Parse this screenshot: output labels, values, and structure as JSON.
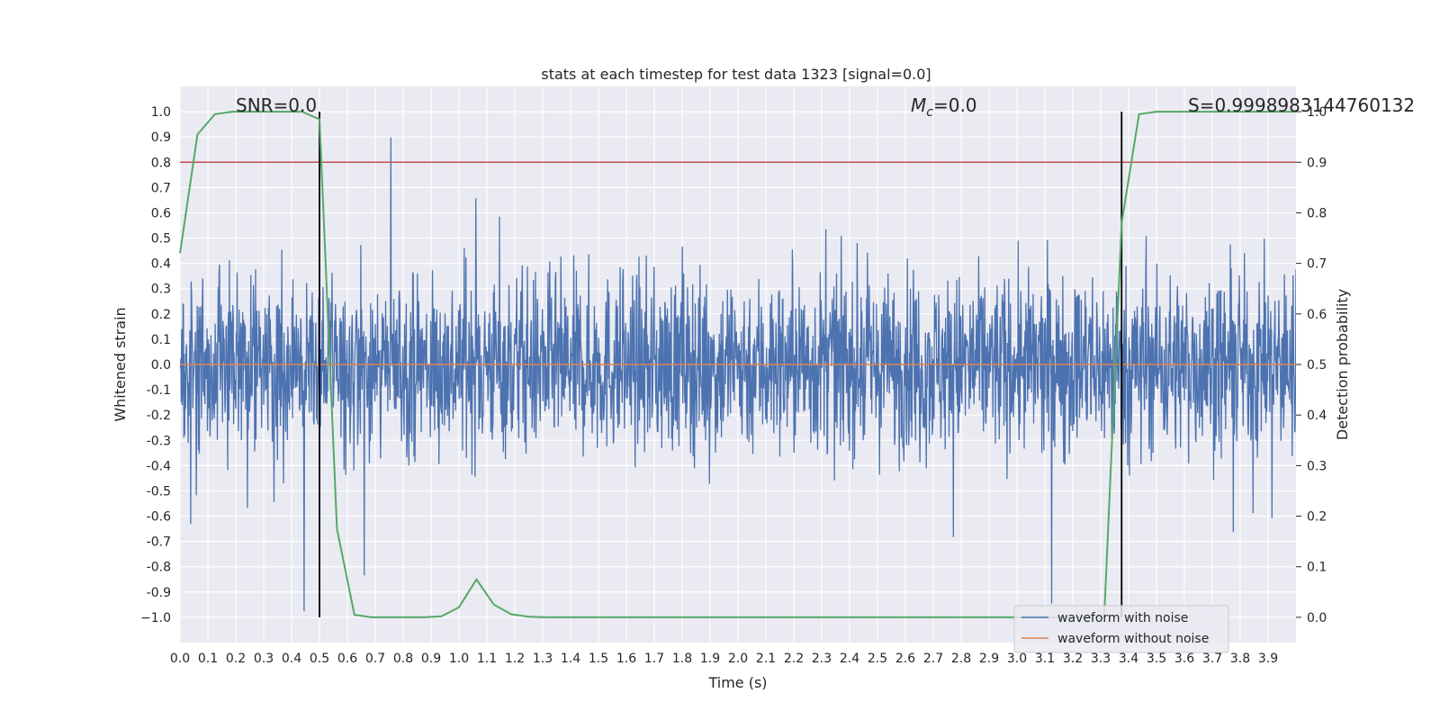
{
  "chart_data": {
    "type": "line",
    "title": "stats at each timestep for test data 1323 [signal=0.0]",
    "xlabel": "Time (s)",
    "ylabel_left": "Whitened strain",
    "ylabel_right": "Detection probability",
    "xlim": [
      0.0,
      4.0
    ],
    "ylim_left": [
      -1.1,
      1.1
    ],
    "ylim_right": [
      -0.05,
      1.05
    ],
    "x_ticks": [
      "0.0",
      "0.1",
      "0.2",
      "0.3",
      "0.4",
      "0.5",
      "0.6",
      "0.7",
      "0.8",
      "0.9",
      "1.0",
      "1.1",
      "1.2",
      "1.3",
      "1.4",
      "1.5",
      "1.6",
      "1.7",
      "1.8",
      "1.9",
      "2.0",
      "2.1",
      "2.2",
      "2.3",
      "2.4",
      "2.5",
      "2.6",
      "2.7",
      "2.8",
      "2.9",
      "3.0",
      "3.1",
      "3.2",
      "3.3",
      "3.4",
      "3.5",
      "3.6",
      "3.7",
      "3.8",
      "3.9"
    ],
    "y_ticks_left": [
      "1.0",
      "0.9",
      "0.8",
      "0.7",
      "0.6",
      "0.5",
      "0.4",
      "0.3",
      "0.2",
      "0.1",
      "0.0",
      "-0.1",
      "-0.2",
      "-0.3",
      "-0.4",
      "-0.5",
      "-0.6",
      "-0.7",
      "-0.8",
      "-0.9",
      "−1.0"
    ],
    "y_ticks_right": [
      "1.0",
      "0.9",
      "0.8",
      "0.7",
      "0.6",
      "0.5",
      "0.4",
      "0.3",
      "0.2",
      "0.1",
      "0.0"
    ],
    "annotations": {
      "snr": "SNR=0.0",
      "mc": "M_c=0.0",
      "mc_base": "M",
      "mc_sub": "c",
      "mc_value": "=0.0",
      "s": "S=0.9998983144760132"
    },
    "threshold_probability": 0.9,
    "vertical_lines_x": [
      0.5,
      3.375
    ],
    "series": [
      {
        "name": "waveform with noise",
        "color": "#4c72b0",
        "note": "dense noisy strain, roughly within ±0.5 with spikes near ±1.0"
      },
      {
        "name": "waveform without noise",
        "color": "#dd8452",
        "values_constant": 0.0
      },
      {
        "name": "detection probability",
        "color": "#55a868",
        "axis": "right",
        "x": [
          0.0,
          0.0625,
          0.125,
          0.1875,
          0.25,
          0.3125,
          0.375,
          0.4375,
          0.5,
          0.5625,
          0.625,
          0.6875,
          0.75,
          0.8125,
          0.875,
          0.9375,
          1.0,
          1.0625,
          1.125,
          1.1875,
          1.25,
          1.3125,
          1.375,
          2.0,
          2.5,
          3.0,
          3.25,
          3.3125,
          3.375,
          3.4375,
          3.5,
          3.5625,
          3.625,
          3.75,
          3.875,
          4.0
        ],
        "y": [
          0.72,
          0.955,
          0.995,
          1.0,
          1.0,
          1.0,
          1.0,
          1.0,
          0.985,
          0.175,
          0.005,
          0.0,
          0.0,
          0.0,
          0.0,
          0.002,
          0.02,
          0.075,
          0.025,
          0.006,
          0.001,
          0.0,
          0.0,
          0.0,
          0.0,
          0.0,
          0.0,
          0.0,
          0.78,
          0.995,
          1.0,
          1.0,
          1.0,
          1.0,
          1.0,
          1.0
        ]
      }
    ],
    "colors": {
      "plot_background": "#eaeaf2",
      "grid": "#ffffff",
      "threshold_line": "#c44e52",
      "vertical_line": "#000000"
    }
  }
}
